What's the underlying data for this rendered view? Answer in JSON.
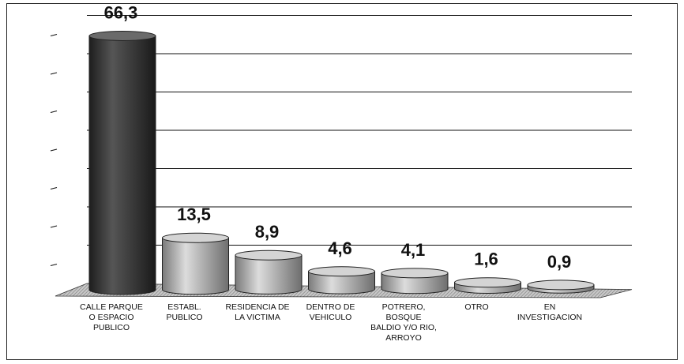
{
  "chart_data": {
    "type": "bar",
    "style": "3d-cylinder",
    "categories": [
      "CALLE PARQUE O ESPACIO PUBLICO",
      "ESTABL. PUBLICO",
      "RESIDENCIA DE LA VICTIMA",
      "DENTRO DE VEHICULO",
      "POTRERO, BOSQUE BALDIO Y/O RIO, ARROYO",
      "OTRO",
      "EN INVESTIGACION"
    ],
    "category_lines": [
      [
        "CALLE PARQUE",
        "O ESPACIO",
        "PUBLICO"
      ],
      [
        "ESTABL.",
        "PUBLICO"
      ],
      [
        "RESIDENCIA DE",
        "LA VICTIMA"
      ],
      [
        "DENTRO DE",
        "VEHICULO"
      ],
      [
        "POTRERO,",
        "BOSQUE",
        "BALDIO Y/O RIO,",
        "ARROYO"
      ],
      [
        "OTRO"
      ],
      [
        "EN",
        "INVESTIGACION"
      ]
    ],
    "values": [
      66.3,
      13.5,
      8.9,
      4.6,
      4.1,
      1.6,
      0.9
    ],
    "value_labels": [
      "66,3",
      "13,5",
      "8,9",
      "4,6",
      "4,1",
      "1,6",
      "0,9"
    ],
    "ylim": [
      0,
      70
    ],
    "grid": true,
    "colors": {
      "highlight": "#3a3a3a",
      "highlight_light": "#6a6a6a",
      "bar": "#8f8f8f",
      "bar_light": "#d4d4d4",
      "floor": "#9a9a9a",
      "gridline": "#111111"
    }
  }
}
